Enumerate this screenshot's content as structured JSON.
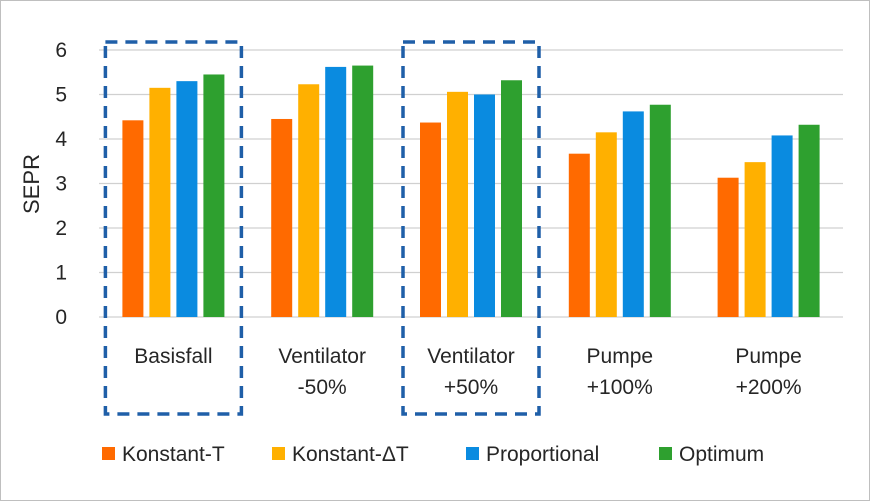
{
  "chart_data": {
    "type": "bar",
    "title": "",
    "xlabel": "",
    "ylabel": "SEPR",
    "ylim": [
      0,
      6
    ],
    "yticks": [
      0,
      1,
      2,
      3,
      4,
      5,
      6
    ],
    "grid": true,
    "legend_position": "bottom",
    "categories": [
      [
        "Basisfall"
      ],
      [
        "Ventilator",
        "-50%"
      ],
      [
        "Ventilator",
        "+50%"
      ],
      [
        "Pumpe",
        "+100%"
      ],
      [
        "Pumpe",
        "+200%"
      ]
    ],
    "highlighted_categories": [
      0,
      2
    ],
    "highlight_color": "#1f5fa8",
    "series": [
      {
        "name": "Konstant-T",
        "color": "#ff6a00",
        "values": [
          4.42,
          4.45,
          4.37,
          3.67,
          3.13
        ]
      },
      {
        "name": "Konstant-ΔT",
        "color": "#ffb000",
        "values": [
          5.15,
          5.23,
          5.06,
          4.15,
          3.48
        ]
      },
      {
        "name": "Proportional",
        "color": "#0a8be0",
        "values": [
          5.3,
          5.62,
          5.0,
          4.62,
          4.08
        ]
      },
      {
        "name": "Optimum",
        "color": "#2ea02f",
        "values": [
          5.45,
          5.65,
          5.32,
          4.77,
          4.32
        ]
      }
    ]
  }
}
